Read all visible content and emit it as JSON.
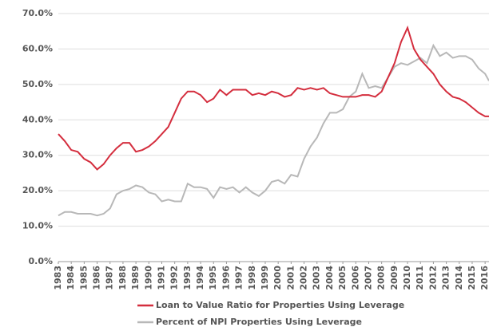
{
  "chart_data": {
    "type": "line",
    "x": [
      1983,
      1983.5,
      1984,
      1984.5,
      1985,
      1985.5,
      1986,
      1986.5,
      1987,
      1987.5,
      1988,
      1988.5,
      1989,
      1989.5,
      1990,
      1990.5,
      1991,
      1991.5,
      1992,
      1992.5,
      1993,
      1993.5,
      1994,
      1994.5,
      1995,
      1995.5,
      1996,
      1996.5,
      1997,
      1997.5,
      1998,
      1998.5,
      1999,
      1999.5,
      2000,
      2000.5,
      2001,
      2001.5,
      2002,
      2002.5,
      2003,
      2003.5,
      2004,
      2004.5,
      2005,
      2005.5,
      2006,
      2006.5,
      2007,
      2007.5,
      2008,
      2008.5,
      2009,
      2009.5,
      2010,
      2010.5,
      2011,
      2011.5,
      2012,
      2012.5,
      2013,
      2013.5,
      2014,
      2014.5,
      2015,
      2015.5,
      2016,
      2016.3
    ],
    "series": [
      {
        "name": "Loan to Value Ratio for Properties Using Leverage",
        "color": "#d42e3e",
        "values": [
          36,
          34,
          31.5,
          31,
          29,
          28,
          26,
          27.5,
          30,
          32,
          33.5,
          33.5,
          31,
          31.5,
          32.5,
          34,
          36,
          38,
          42,
          46,
          48,
          48,
          47,
          45,
          46,
          48.5,
          47,
          48.5,
          48.5,
          48.5,
          47,
          47.5,
          47,
          48,
          47.5,
          46.5,
          47,
          49,
          48.5,
          49,
          48.5,
          49,
          47.5,
          47,
          46.5,
          46.5,
          46.5,
          47,
          47,
          46.5,
          48,
          52,
          56,
          62,
          66,
          60,
          57,
          55,
          53,
          50,
          48,
          46.5,
          46,
          45,
          43.5,
          42,
          41,
          41
        ]
      },
      {
        "name": "Percent of NPI Properties Using Leverage",
        "color": "#b8b8b8",
        "values": [
          13,
          14,
          14,
          13.5,
          13.5,
          13.5,
          13,
          13.5,
          15,
          19,
          20,
          20.5,
          21.5,
          21,
          19.5,
          19,
          17,
          17.5,
          17,
          17,
          22,
          21,
          21,
          20.5,
          18,
          21,
          20.5,
          21,
          19.5,
          21,
          19.5,
          18.5,
          20,
          22.5,
          23,
          22,
          24.5,
          24,
          29,
          32.5,
          35,
          39,
          42,
          42,
          43,
          46.5,
          48,
          53,
          49,
          49.5,
          49,
          52,
          55,
          56,
          55.5,
          56.5,
          57.5,
          56,
          61,
          58,
          59,
          57.5,
          58,
          58,
          57,
          54.5,
          53,
          51
        ]
      }
    ],
    "xlim": [
      1983,
      2016.3
    ],
    "xticks": [
      1983,
      1984,
      1985,
      1986,
      1987,
      1988,
      1989,
      1990,
      1991,
      1992,
      1993,
      1994,
      1995,
      1996,
      1997,
      1998,
      1999,
      2000,
      2001,
      2002,
      2003,
      2004,
      2005,
      2006,
      2007,
      2008,
      2009,
      2010,
      2011,
      2012,
      2013,
      2014,
      2015,
      2016
    ],
    "ylim": [
      0,
      70
    ],
    "yticks": [
      {
        "value": 0,
        "label": "0.0%"
      },
      {
        "value": 10,
        "label": "10.0%"
      },
      {
        "value": 20,
        "label": "20.0%"
      },
      {
        "value": 30,
        "label": "30.0%"
      },
      {
        "value": 40,
        "label": "40.0%"
      },
      {
        "value": 50,
        "label": "50.0%"
      },
      {
        "value": 60,
        "label": "60.0%"
      },
      {
        "value": 70,
        "label": "70.0%"
      }
    ],
    "grid": true
  }
}
